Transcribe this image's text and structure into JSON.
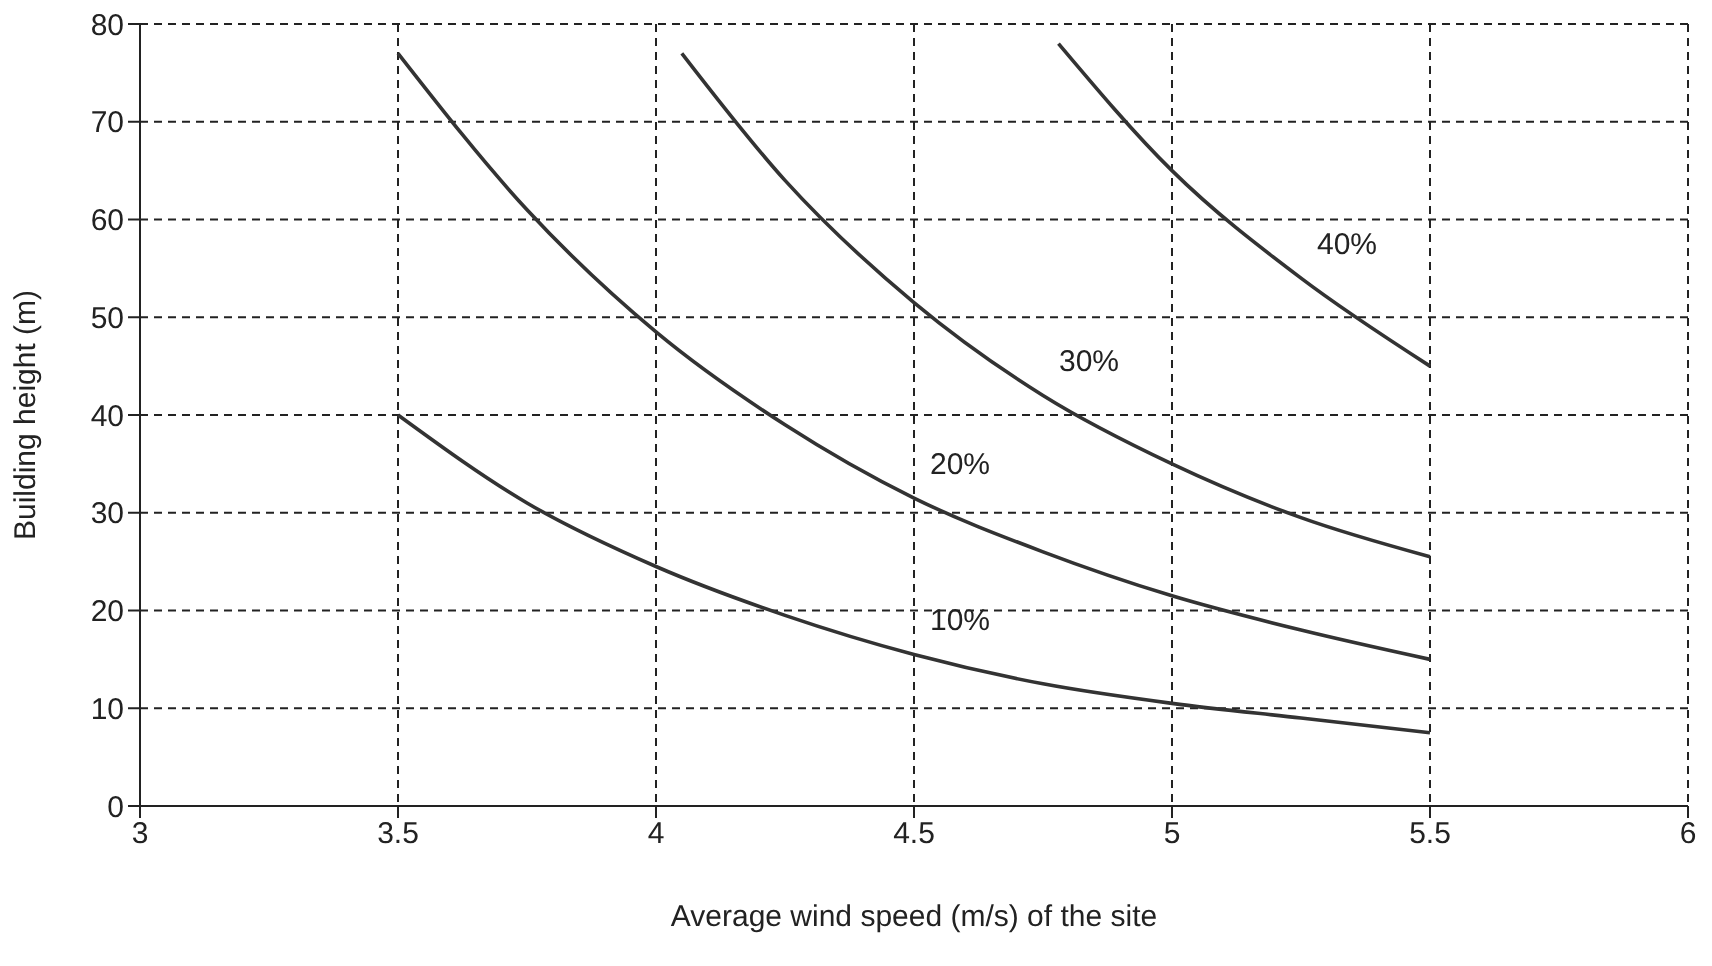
{
  "chart_data": {
    "type": "line",
    "xlabel": "Average wind speed (m/s) of the site",
    "ylabel": "Building height (m)",
    "xlim": [
      3,
      6
    ],
    "xticks": [
      3,
      3.5,
      4,
      4.5,
      5,
      5.5,
      6
    ],
    "ylim": [
      0,
      80
    ],
    "yticks": [
      0,
      10,
      20,
      30,
      40,
      50,
      60,
      70,
      80
    ],
    "grid": true,
    "legend": false,
    "marker": "none",
    "line_style": "solid",
    "series": [
      {
        "name": "10%",
        "color": "#333333",
        "x": [
          3.5,
          3.75,
          4,
          4.25,
          4.5,
          4.75,
          5,
          5.25,
          5.5
        ],
        "values": [
          40,
          31,
          24.5,
          19.5,
          15.5,
          12.5,
          10.5,
          9,
          7.5
        ]
      },
      {
        "name": "20%",
        "color": "#333333",
        "x": [
          3.5,
          3.75,
          4,
          4.25,
          4.5,
          4.75,
          5,
          5.25,
          5.5
        ],
        "values": [
          77,
          61,
          48.5,
          39,
          31.5,
          26,
          21.5,
          18,
          15
        ]
      },
      {
        "name": "30%",
        "color": "#333333",
        "x": [
          4.05,
          4.25,
          4.5,
          4.75,
          5,
          5.25,
          5.5
        ],
        "values": [
          77,
          64,
          51.5,
          42,
          35,
          29.5,
          25.5
        ]
      },
      {
        "name": "40%",
        "color": "#333333",
        "x": [
          4.78,
          5,
          5.25,
          5.5
        ],
        "values": [
          78,
          65,
          54,
          45
        ]
      }
    ]
  }
}
